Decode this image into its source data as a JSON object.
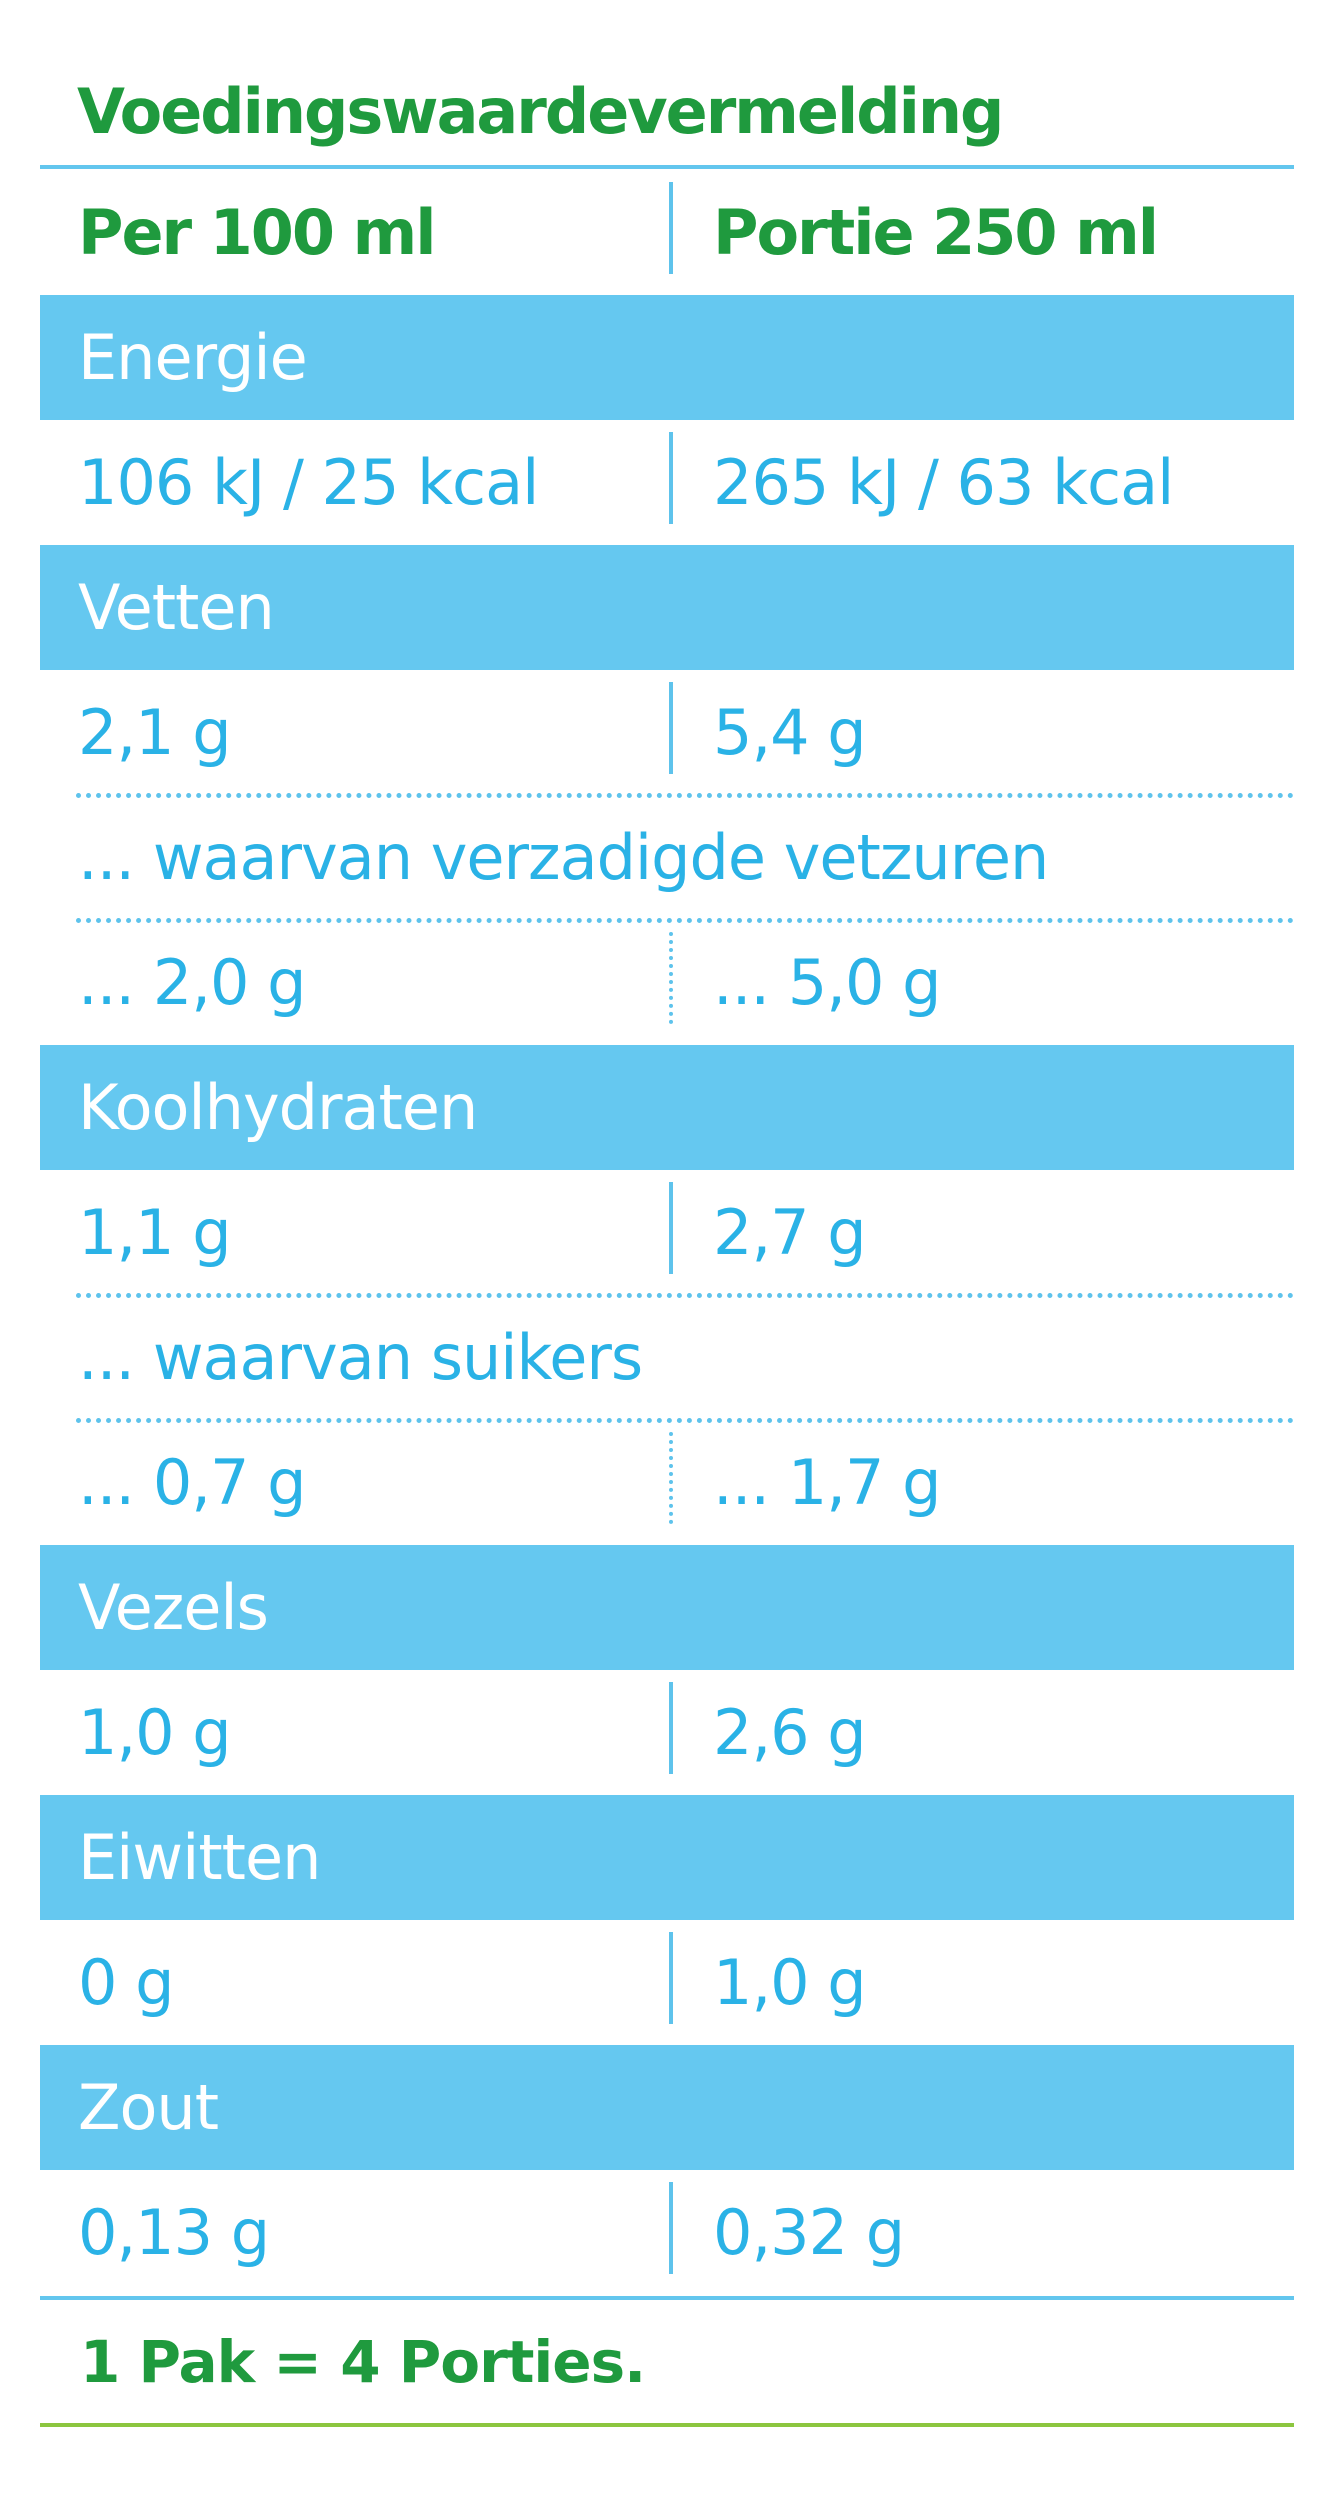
{
  "title": "Voedingswaardevermelding",
  "header": {
    "left": "Per 100 ml",
    "right": "Portie 250 ml"
  },
  "energie": {
    "label": "Energie",
    "left": "106 kJ / 25 kcal",
    "right": "265 kJ / 63 kcal"
  },
  "vetten": {
    "label": "Vetten",
    "left": "2,1 g",
    "right": "5,4 g"
  },
  "verzadigd": {
    "label": "... waarvan verzadigde vetzuren",
    "left": "... 2,0 g",
    "right": "... 5,0 g"
  },
  "koolhydraten": {
    "label": "Koolhydraten",
    "left": "1,1 g",
    "right": "2,7 g"
  },
  "suikers": {
    "label": "... waarvan suikers",
    "left": "... 0,7 g",
    "right": "... 1,7 g"
  },
  "vezels": {
    "label": "Vezels",
    "left": "1,0 g",
    "right": "2,6 g"
  },
  "eiwitten": {
    "label": "Eiwitten",
    "left": "0 g",
    "right": "1,0 g"
  },
  "zout": {
    "label": "Zout",
    "left": "0,13 g",
    "right": "0,32 g"
  },
  "footer": "1 Pak = 4 Porties.",
  "colors": {
    "green": "#1f9a3e",
    "band": "#65c8f0",
    "text_blue": "#2ab2e6",
    "line_blue": "#63c6ee",
    "line_green": "#8cc63f"
  }
}
